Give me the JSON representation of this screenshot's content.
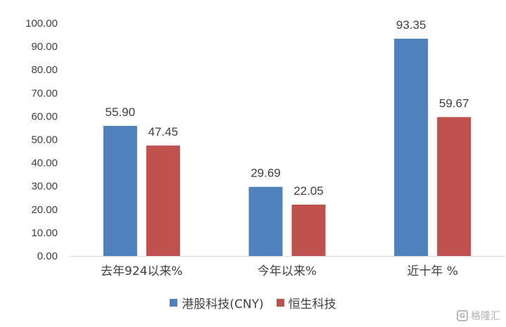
{
  "chart_data": {
    "type": "bar",
    "categories": [
      "去年924以来%",
      "今年以来%",
      "近十年 %"
    ],
    "series": [
      {
        "name": "港股科技(CNY)",
        "color": "#4F81BD",
        "values": [
          55.9,
          29.69,
          93.35
        ]
      },
      {
        "name": "恒生科技",
        "color": "#C0504D",
        "values": [
          47.45,
          22.05,
          59.67
        ]
      }
    ],
    "value_labels": [
      [
        "55.90",
        "29.69",
        "93.35"
      ],
      [
        "47.45",
        "22.05",
        "59.67"
      ]
    ],
    "y_ticks": [
      "0.00",
      "10.00",
      "20.00",
      "30.00",
      "40.00",
      "50.00",
      "60.00",
      "70.00",
      "80.00",
      "90.00",
      "100.00"
    ],
    "ylim": [
      0,
      100
    ],
    "grid": false,
    "legend_position": "bottom",
    "title": "",
    "xlabel": "",
    "ylabel": ""
  },
  "watermark": {
    "icon": "G",
    "text": "格隆汇"
  }
}
